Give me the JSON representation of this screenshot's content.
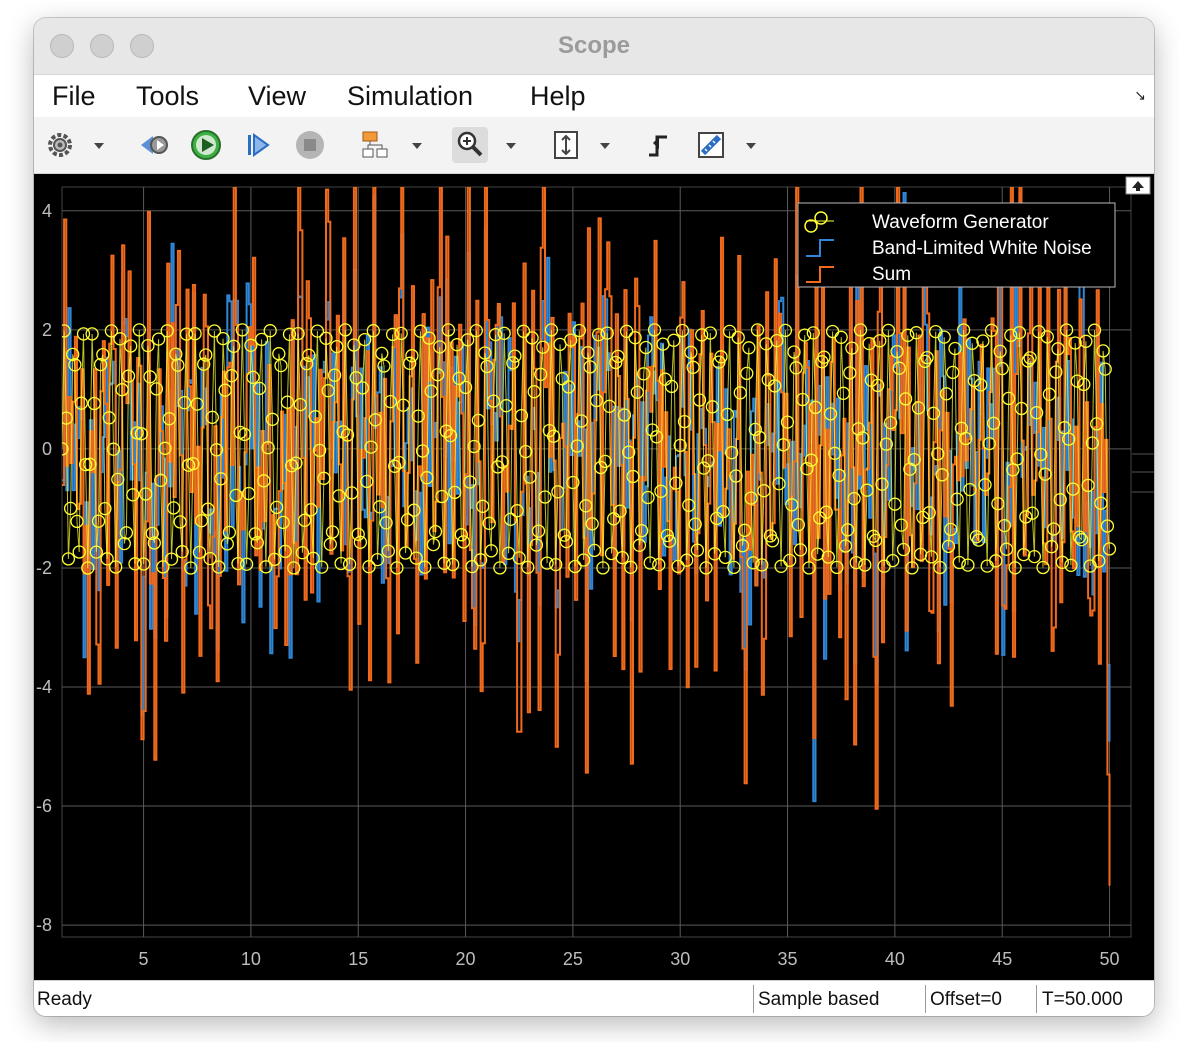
{
  "window": {
    "title": "Scope"
  },
  "menu": {
    "items": [
      "File",
      "Tools",
      "View",
      "Simulation",
      "Help"
    ]
  },
  "toolbar": {
    "icons": [
      "settings-icon",
      "run-backward-icon",
      "run-icon",
      "step-forward-icon",
      "stop-icon",
      "highlight-block-icon",
      "zoom-in-icon",
      "scale-axes-icon",
      "trigger-icon",
      "cursor-measure-icon"
    ]
  },
  "status": {
    "left": "Ready",
    "mode": "Sample based",
    "offset": "Offset=0",
    "time": "T=50.000"
  },
  "colors": {
    "waveform": "#ffff33",
    "noise": "#2f86d6",
    "sum": "#ef6a1c",
    "grid": "#5a5a5a",
    "axis_text": "#bdbdbd"
  },
  "chart_data": {
    "type": "line",
    "x_ticks": [
      5,
      10,
      15,
      20,
      25,
      30,
      35,
      40,
      45,
      50
    ],
    "y_ticks": [
      4,
      2,
      0,
      -2,
      -4,
      -6,
      -8
    ],
    "xlim": [
      1.2,
      51.0
    ],
    "ylim": [
      -8.2,
      4.4
    ],
    "grid": true,
    "legend_position": "top-right",
    "legend": [
      "Waveform Generator",
      "Band-Limited White Noise",
      "Sum"
    ],
    "series": [
      {
        "name": "Waveform Generator",
        "style": "circle-markers",
        "amplitude": 2.0,
        "phase_step_per_sample": 1.44,
        "sample_time": 0.1
      },
      {
        "name": "Band-Limited White Noise",
        "style": "stairs",
        "sample_time": 0.1,
        "approx_range": [
          -8.2,
          4.3
        ]
      },
      {
        "name": "Sum",
        "style": "stairs",
        "sample_time": 0.1,
        "approx_range": [
          -8.2,
          4.4
        ]
      }
    ]
  }
}
